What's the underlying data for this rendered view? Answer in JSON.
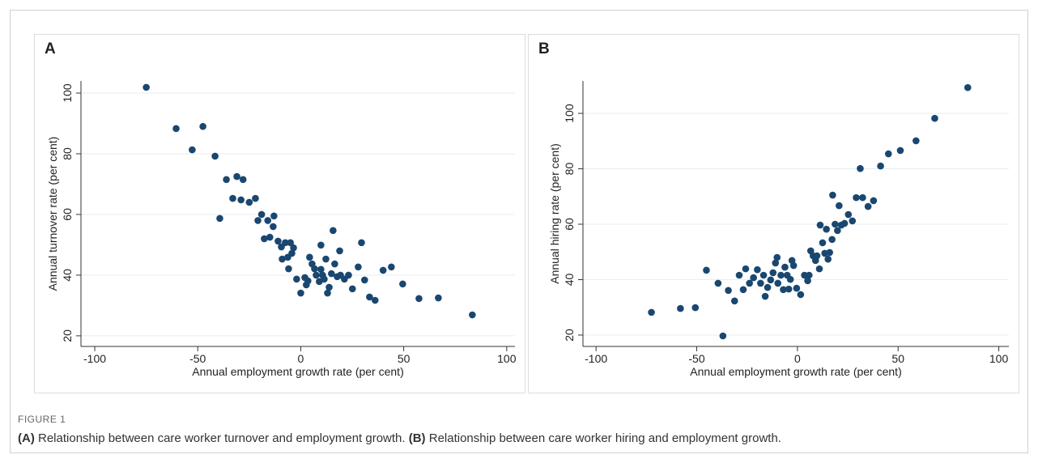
{
  "chart_data": [
    {
      "type": "scatter",
      "panel": "A",
      "xlabel": "Annual employment growth rate (per cent)",
      "ylabel": "Annual turnover rate (per cent)",
      "color": "#1a476f",
      "grid": true,
      "xlim": [
        -106.7,
        104
      ],
      "ylim": [
        16.5,
        104
      ],
      "xticks": [
        -100,
        -50,
        0,
        50,
        100
      ],
      "yticks": [
        20,
        40,
        60,
        80,
        100
      ],
      "x": [
        -75,
        -60.5,
        -47.5,
        -52.7,
        -41.6,
        -36.1,
        -31,
        -28,
        -33,
        -29,
        -25,
        -22,
        -39.3,
        -20.8,
        -19,
        -16,
        -13,
        -17.7,
        -15,
        -13.4,
        -11,
        -9.4,
        -7.5,
        -5,
        -3.5,
        -9,
        -6.3,
        -4.3,
        -5.9,
        -2,
        0,
        2,
        2.7,
        3.5,
        4.3,
        5.5,
        6.7,
        7.5,
        9,
        9.8,
        10.6,
        11.4,
        9.8,
        12.2,
        13,
        13.8,
        14.9,
        15.7,
        16.5,
        17.7,
        19.3,
        18.9,
        21.2,
        23.2,
        25.1,
        27.9,
        29.5,
        31,
        33.4,
        36.1,
        40,
        44,
        49.5,
        57.4,
        66.8,
        83.3
      ],
      "y": [
        101.9,
        88.3,
        89,
        81.3,
        79.2,
        71.5,
        72.5,
        71.5,
        65.3,
        64.8,
        64,
        65.3,
        58.7,
        58,
        60,
        58,
        59.5,
        52,
        52.5,
        56,
        51.2,
        49.3,
        50.7,
        50.7,
        49,
        45.3,
        45.9,
        47.2,
        42.1,
        38.7,
        34.1,
        39.2,
        36.8,
        38.1,
        45.9,
        43.7,
        42.1,
        40,
        37.9,
        41.9,
        40,
        38.7,
        49.9,
        45.3,
        34.1,
        36,
        40.5,
        54.7,
        43.7,
        39.5,
        40,
        48,
        38.7,
        40,
        35.5,
        42.7,
        50.7,
        38.4,
        32.8,
        31.7,
        41.6,
        42.7,
        37.1,
        32.3,
        32.5,
        26.9
      ]
    },
    {
      "type": "scatter",
      "panel": "B",
      "xlabel": "Annual employment growth rate (per cent)",
      "ylabel": "Annual hiring rate (per cent)",
      "color": "#1a476f",
      "grid": true,
      "xlim": [
        -106.5,
        105
      ],
      "ylim": [
        15.9,
        111.7
      ],
      "xticks": [
        -100,
        -50,
        0,
        50,
        100
      ],
      "yticks": [
        20,
        40,
        60,
        80,
        100
      ],
      "x": [
        -72.5,
        -58.1,
        -50.7,
        -45.2,
        -39.4,
        -37,
        -34.3,
        -31.2,
        -28.9,
        -26.9,
        -25.7,
        -23.8,
        -21.8,
        -19.9,
        -18.3,
        -16.8,
        -16,
        -14.8,
        -13.3,
        -12.1,
        -10.9,
        -10.1,
        -9.7,
        -8.2,
        -7,
        -6.2,
        -5.1,
        -4.3,
        -3.5,
        -2.7,
        -1.9,
        -0.4,
        1.6,
        3.5,
        5.1,
        5.8,
        6.6,
        7.8,
        9,
        9.7,
        10.9,
        11.3,
        12.5,
        13.6,
        14.4,
        15.2,
        16,
        17.2,
        17.5,
        18.7,
        19.9,
        20.7,
        21.8,
        23.4,
        25.3,
        27.3,
        29.2,
        31.2,
        32.4,
        35.1,
        37.8,
        41.3,
        45.2,
        51.1,
        58.9,
        68.2,
        84.6
      ],
      "y": [
        28.2,
        29.6,
        29.9,
        43.4,
        38.7,
        19.7,
        36.1,
        32.3,
        41.6,
        36.4,
        43.9,
        38.7,
        40.7,
        43.6,
        38.7,
        41.6,
        34,
        37.2,
        39.9,
        42.5,
        46,
        48,
        38.7,
        41.6,
        36.4,
        44.5,
        41.6,
        36.6,
        40.1,
        46.9,
        45.1,
        36.9,
        34.6,
        41.6,
        39.6,
        41.6,
        50.4,
        48.6,
        46.9,
        48.6,
        43.9,
        59.7,
        53.3,
        49.5,
        58.2,
        47.4,
        49.8,
        54.5,
        70.5,
        60,
        57.7,
        66.7,
        59.7,
        60.3,
        63.5,
        61.2,
        69.6,
        80.1,
        69.6,
        66.4,
        68.5,
        81,
        85.4,
        86.6,
        90.1,
        98.2,
        109.3
      ]
    }
  ],
  "figure": {
    "label": "FIGURE 1",
    "caption": [
      {
        "tag": "(A)",
        "text": " Relationship between care worker turnover and employment growth. "
      },
      {
        "tag": "(B)",
        "text": " Relationship between care worker hiring and employment growth."
      }
    ]
  }
}
